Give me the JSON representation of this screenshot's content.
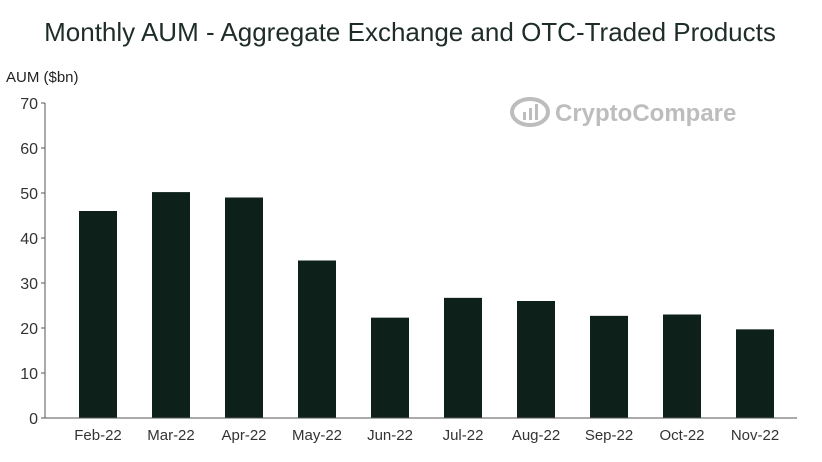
{
  "chart_data": {
    "type": "bar",
    "title": "Monthly AUM - Aggregate Exchange and OTC-Traded Products",
    "ylabel": "AUM ($bn)",
    "xlabel": "",
    "categories": [
      "Feb-22",
      "Mar-22",
      "Apr-22",
      "May-22",
      "Jun-22",
      "Jul-22",
      "Aug-22",
      "Sep-22",
      "Oct-22",
      "Nov-22"
    ],
    "values": [
      46,
      50.2,
      49,
      35,
      22.3,
      26.7,
      26,
      22.7,
      23,
      19.7
    ],
    "ylim": [
      0,
      70
    ],
    "yticks": [
      0,
      10,
      20,
      30,
      40,
      50,
      60,
      70
    ],
    "grid": false,
    "bar_color": "#0d201a"
  },
  "watermark": {
    "text": "CryptoCompare",
    "color": "#bdbdbd"
  }
}
